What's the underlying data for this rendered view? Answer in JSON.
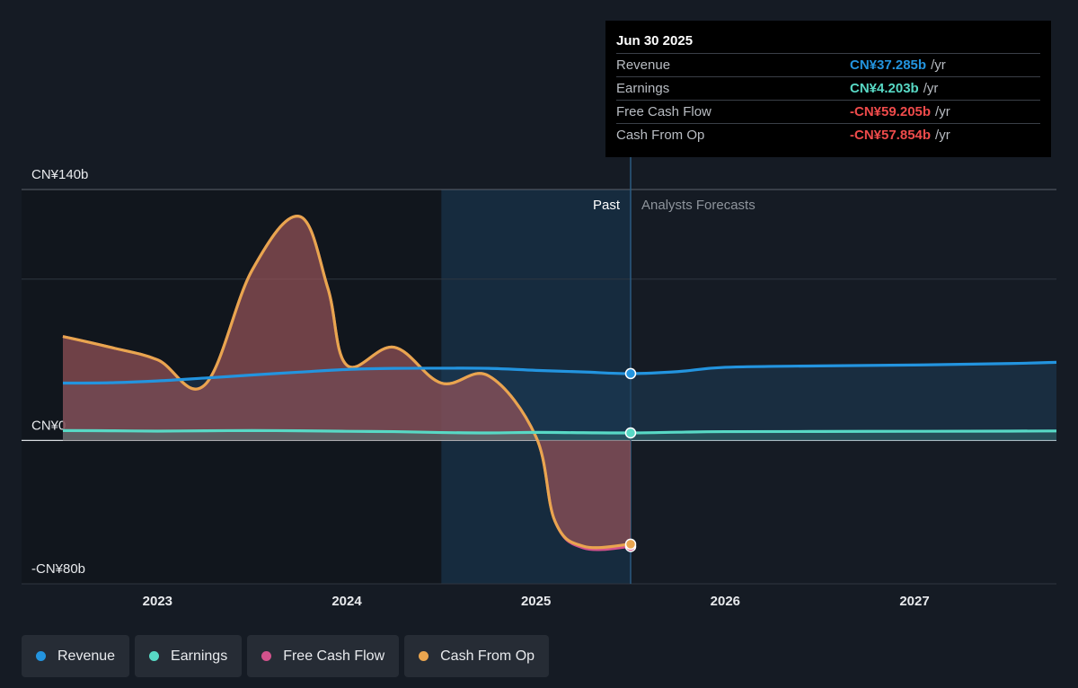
{
  "colors": {
    "background": "#151b24",
    "revenue": "#2394df",
    "earnings": "#58d9c5",
    "free_cash_flow": "#d2528c",
    "cash_from_op": "#e9a54f",
    "negative": "#ef4b4b"
  },
  "tooltip": {
    "date": "Jun 30 2025",
    "rows": [
      {
        "label": "Revenue",
        "value": "CN¥37.285b",
        "unit": "/yr",
        "color": "#2394df"
      },
      {
        "label": "Earnings",
        "value": "CN¥4.203b",
        "unit": "/yr",
        "color": "#58d9c5"
      },
      {
        "label": "Free Cash Flow",
        "value": "-CN¥59.205b",
        "unit": "/yr",
        "color": "#ef4b4b"
      },
      {
        "label": "Cash From Op",
        "value": "-CN¥57.854b",
        "unit": "/yr",
        "color": "#ef4b4b"
      }
    ]
  },
  "labels": {
    "past": "Past",
    "forecast": "Analysts Forecasts"
  },
  "legend": [
    {
      "label": "Revenue",
      "color": "#2394df",
      "icon": "revenue-dot-icon"
    },
    {
      "label": "Earnings",
      "color": "#58d9c5",
      "icon": "earnings-dot-icon"
    },
    {
      "label": "Free Cash Flow",
      "color": "#d2528c",
      "icon": "free-cash-flow-dot-icon"
    },
    {
      "label": "Cash From Op",
      "color": "#e9a54f",
      "icon": "cash-from-op-dot-icon"
    }
  ],
  "chart_data": {
    "type": "line",
    "title": "",
    "xlabel": "",
    "ylabel": "",
    "y_tick_labels": [
      {
        "value": 140,
        "label": "CN¥140b"
      },
      {
        "value": 0,
        "label": "CN¥0"
      },
      {
        "value": -80,
        "label": "-CN¥80b"
      }
    ],
    "ylim": [
      -80,
      140
    ],
    "xlim": [
      2022.5,
      2027.75
    ],
    "x_ticks": [
      2023,
      2024,
      2025,
      2026,
      2027
    ],
    "x_tick_labels": [
      "2023",
      "2024",
      "2025",
      "2026",
      "2027"
    ],
    "past_shade_start": 2024.5,
    "now": 2025.5,
    "grid": true,
    "legend_position": "bottom",
    "series": [
      {
        "name": "Revenue",
        "key": "revenue",
        "x": [
          2022.5,
          2022.75,
          2023.0,
          2023.25,
          2023.5,
          2023.75,
          2024.0,
          2024.25,
          2024.5,
          2024.75,
          2025.0,
          2025.25,
          2025.5,
          2025.75,
          2026.0,
          2026.5,
          2027.0,
          2027.5,
          2027.75
        ],
        "y": [
          32,
          32.2,
          33.2,
          34.8,
          36.5,
          38.1,
          39.6,
          40.2,
          40.3,
          40.2,
          39.1,
          38.2,
          37.3,
          38.4,
          40.8,
          41.6,
          42.1,
          42.9,
          43.6
        ]
      },
      {
        "name": "Earnings",
        "key": "earnings",
        "x": [
          2022.5,
          2022.75,
          2023.0,
          2023.25,
          2023.5,
          2023.75,
          2024.0,
          2024.25,
          2024.5,
          2024.75,
          2025.0,
          2025.25,
          2025.5,
          2025.75,
          2026.0,
          2026.5,
          2027.0,
          2027.5,
          2027.75
        ],
        "y": [
          5.5,
          5.4,
          5.2,
          5.4,
          5.5,
          5.4,
          5.1,
          4.9,
          4.4,
          4.2,
          4.5,
          4.3,
          4.2,
          4.6,
          4.9,
          5.0,
          5.1,
          5.2,
          5.3
        ]
      },
      {
        "name": "Free Cash Flow",
        "key": "free_cash_flow",
        "x": [
          2022.5,
          2022.75,
          2023.0,
          2023.25,
          2023.5,
          2023.75,
          2023.9,
          2024.0,
          2024.25,
          2024.5,
          2024.75,
          2025.0,
          2025.1,
          2025.25,
          2025.5
        ],
        "y": [
          58,
          52,
          45,
          31,
          95,
          125,
          85,
          42,
          52,
          32,
          36,
          2,
          -45,
          -60,
          -59.2
        ]
      },
      {
        "name": "Cash From Op",
        "key": "cash_from_op",
        "x": [
          2022.5,
          2022.75,
          2023.0,
          2023.25,
          2023.5,
          2023.75,
          2023.9,
          2024.0,
          2024.25,
          2024.5,
          2024.75,
          2025.0,
          2025.1,
          2025.25,
          2025.5
        ],
        "y": [
          58,
          52,
          45,
          31,
          95,
          125,
          85,
          42,
          52,
          32,
          36,
          2,
          -45,
          -59,
          -57.9
        ]
      }
    ]
  }
}
